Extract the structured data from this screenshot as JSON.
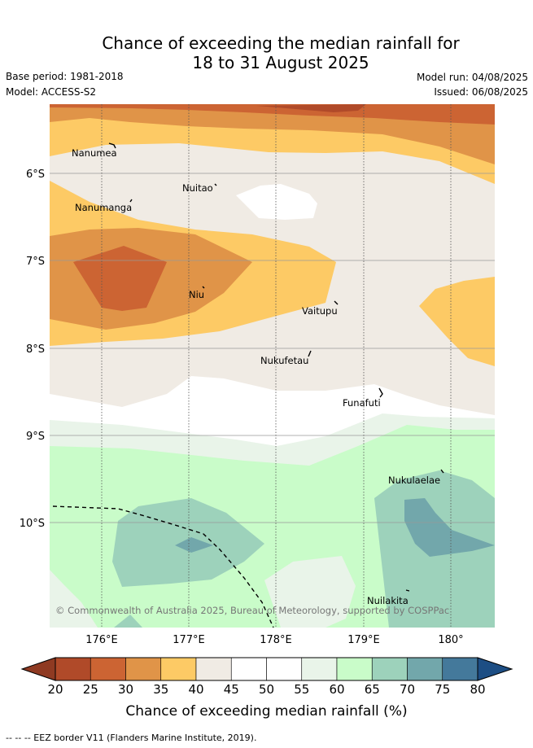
{
  "title": {
    "line1": "Chance of exceeding the median rainfall for",
    "line2": "18 to 31 August 2025"
  },
  "meta": {
    "base_period": "Base period: 1981-2018",
    "model": "Model: ACCESS-S2",
    "model_run": "Model run: 04/08/2025",
    "issued": "Issued: 06/08/2025"
  },
  "map": {
    "lat_ticks": [
      "6°S",
      "7°S",
      "8°S",
      "9°S",
      "10°S"
    ],
    "lon_ticks": [
      "176°E",
      "177°E",
      "178°E",
      "179°E",
      "180°"
    ],
    "places": [
      {
        "name": "Nanumea"
      },
      {
        "name": "Nuitao"
      },
      {
        "name": "Nanumanga"
      },
      {
        "name": "Niu"
      },
      {
        "name": "Vaitupu"
      },
      {
        "name": "Nukufetau"
      },
      {
        "name": "Funafuti"
      },
      {
        "name": "Nukulaelae"
      },
      {
        "name": "Nuilakita"
      }
    ],
    "copyright": "© Commonwealth of Australia 2025, Bureau of Meteorology, supported by COSPPac"
  },
  "colorbar": {
    "labels": [
      "20",
      "25",
      "30",
      "35",
      "40",
      "45",
      "50",
      "55",
      "60",
      "65",
      "70",
      "75",
      "80"
    ],
    "colors": [
      "#b04a29",
      "#cc6433",
      "#e09448",
      "#fdca65",
      "#f0ebe4",
      "#ffffff",
      "#ffffff",
      "#e9f4e9",
      "#c9fcc9",
      "#9dd2bb",
      "#72a7ab",
      "#44799b"
    ],
    "under_color": "#8f3a22",
    "over_color": "#1d4e84",
    "title": "Chance of exceeding median rainfall (%)"
  },
  "footnote": "--  --  -- EEZ border V11 (Flanders Marine Institute, 2019)."
}
